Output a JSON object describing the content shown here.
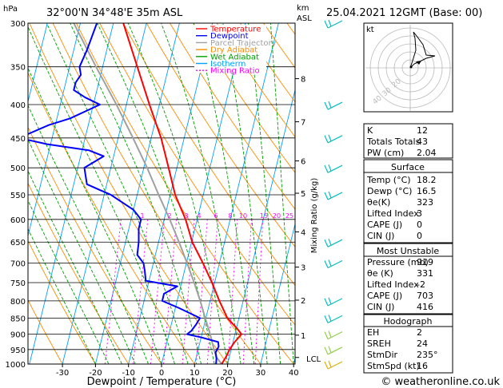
{
  "header": {
    "pressure_unit": "hPa",
    "location": "32°00'N  34°48'E  35m  ASL",
    "height_unit_km": "km",
    "height_unit_asl": "ASL",
    "datetime": "25.04.2021  12GMT  (Base: 00)"
  },
  "footer": {
    "credit": "© weatheronline.co.uk"
  },
  "colors": {
    "temperature": "#ff0000",
    "dewpoint": "#0000ff",
    "parcel": "#a0a0a0",
    "dry_adiabat": "#ff8c00",
    "wet_adiabat": "#00a000",
    "isotherm": "#00a0ff",
    "mixing_ratio": "#ff00ff",
    "wind_barb": "#00c0c0"
  },
  "hodograph": {
    "unit_label": "kt",
    "ring_labels": [
      "40",
      "30",
      "20"
    ]
  },
  "table": {
    "indices": [
      {
        "label": "K",
        "value": "12"
      },
      {
        "label": "Totals Totals",
        "value": "43"
      },
      {
        "label": "PW (cm)",
        "value": "2.04"
      }
    ],
    "surface": {
      "title": "Surface",
      "rows": [
        {
          "label": "Temp (°C)",
          "value": "18.2"
        },
        {
          "label": "Dewp (°C)",
          "value": "16.5"
        },
        {
          "label": "θe(K)",
          "value": "323"
        },
        {
          "label": "Lifted Index",
          "value": "3"
        },
        {
          "label": "CAPE (J)",
          "value": "0"
        },
        {
          "label": "CIN (J)",
          "value": "0"
        }
      ]
    },
    "most_unstable": {
      "title": "Most Unstable",
      "rows": [
        {
          "label": "Pressure (mb)",
          "value": "919"
        },
        {
          "label": "θe (K)",
          "value": "331"
        },
        {
          "label": "Lifted Index",
          "value": "-2"
        },
        {
          "label": "CAPE (J)",
          "value": "703"
        },
        {
          "label": "CIN (J)",
          "value": "416"
        }
      ]
    },
    "hodograph": {
      "title": "Hodograph",
      "rows": [
        {
          "label": "EH",
          "value": "2"
        },
        {
          "label": "SREH",
          "value": "24"
        },
        {
          "label": "StmDir",
          "value": "235°"
        },
        {
          "label": "StmSpd (kt)",
          "value": "16"
        }
      ]
    }
  },
  "chart_data": {
    "type": "line",
    "subtype": "skew-T log-P",
    "xlabel": "Dewpoint / Temperature (°C)",
    "ylabel_left": "hPa",
    "ylabel_right": "Mixing Ratio (g/kg)",
    "x_ticks": [
      -30,
      -20,
      -10,
      0,
      10,
      20,
      30,
      40
    ],
    "pressure_levels": [
      300,
      350,
      400,
      450,
      500,
      550,
      600,
      650,
      700,
      750,
      800,
      850,
      900,
      950,
      1000
    ],
    "height_km_labels": [
      {
        "km": "8",
        "p": 365
      },
      {
        "km": "7",
        "p": 425
      },
      {
        "km": "6",
        "p": 488
      },
      {
        "km": "5",
        "p": 547
      },
      {
        "km": "4",
        "p": 627
      },
      {
        "km": "3",
        "p": 710
      },
      {
        "km": "2",
        "p": 798
      },
      {
        "km": "1",
        "p": 903
      }
    ],
    "lcl_label": "LCL",
    "lcl_pressure": 977,
    "mixing_ratio_labels": [
      "1",
      "2",
      "3",
      "4",
      "6",
      "8",
      "10",
      "15",
      "20",
      "25"
    ],
    "mixing_ratio_values": [
      1,
      2,
      3,
      4,
      6,
      8,
      10,
      15,
      20,
      25
    ],
    "legend": [
      "Temperature",
      "Dewpoint",
      "Parcel Trajectory",
      "Dry Adiabat",
      "Wet Adiabat",
      "Isotherm",
      "Mixing Ratio"
    ],
    "series": [
      {
        "name": "Temperature",
        "p": [
          1000,
          975,
          950,
          925,
          900,
          880,
          850,
          800,
          750,
          700,
          650,
          600,
          550,
          500,
          450,
          400,
          350,
          300
        ],
        "t": [
          18.2,
          19,
          19.5,
          20.5,
          22,
          20,
          16.5,
          12.8,
          9.2,
          5,
          0.2,
          -3.5,
          -8.5,
          -12.5,
          -17,
          -23,
          -29.5,
          -37
        ]
      },
      {
        "name": "Dewpoint",
        "p": [
          1000,
          980,
          960,
          940,
          925,
          910,
          900,
          890,
          870,
          850,
          820,
          800,
          780,
          760,
          745,
          720,
          700,
          680,
          650,
          620,
          600,
          580,
          550,
          530,
          500,
          480,
          470,
          460,
          450,
          430,
          420,
          400,
          390,
          380,
          370,
          360,
          350,
          330,
          300
        ],
        "t": [
          16.5,
          16.2,
          15.5,
          16,
          15.5,
          10,
          5.5,
          6.5,
          7.5,
          8.2,
          1,
          -4.5,
          -4.5,
          -1,
          -11,
          -12,
          -13,
          -15.5,
          -16,
          -17,
          -17,
          -20,
          -28,
          -36,
          -38,
          -33,
          -38,
          -51,
          -60,
          -52,
          -46,
          -38,
          -43,
          -47,
          -47,
          -46,
          -47,
          -46,
          -45
        ]
      },
      {
        "name": "Parcel Trajectory",
        "p": [
          1000,
          977,
          950,
          900,
          850,
          800,
          750,
          700,
          650,
          600,
          550,
          500,
          450,
          400,
          350,
          300
        ],
        "t": [
          18.2,
          16.2,
          14.8,
          12.5,
          9.8,
          7,
          3.8,
          0.2,
          -3.8,
          -8.3,
          -13.5,
          -19,
          -25.5,
          -33,
          -42,
          -52
        ]
      }
    ],
    "wind_barbs_pressure": [
      300,
      400,
      450,
      500,
      550,
      650,
      700,
      800,
      850,
      900,
      950,
      1000
    ]
  }
}
